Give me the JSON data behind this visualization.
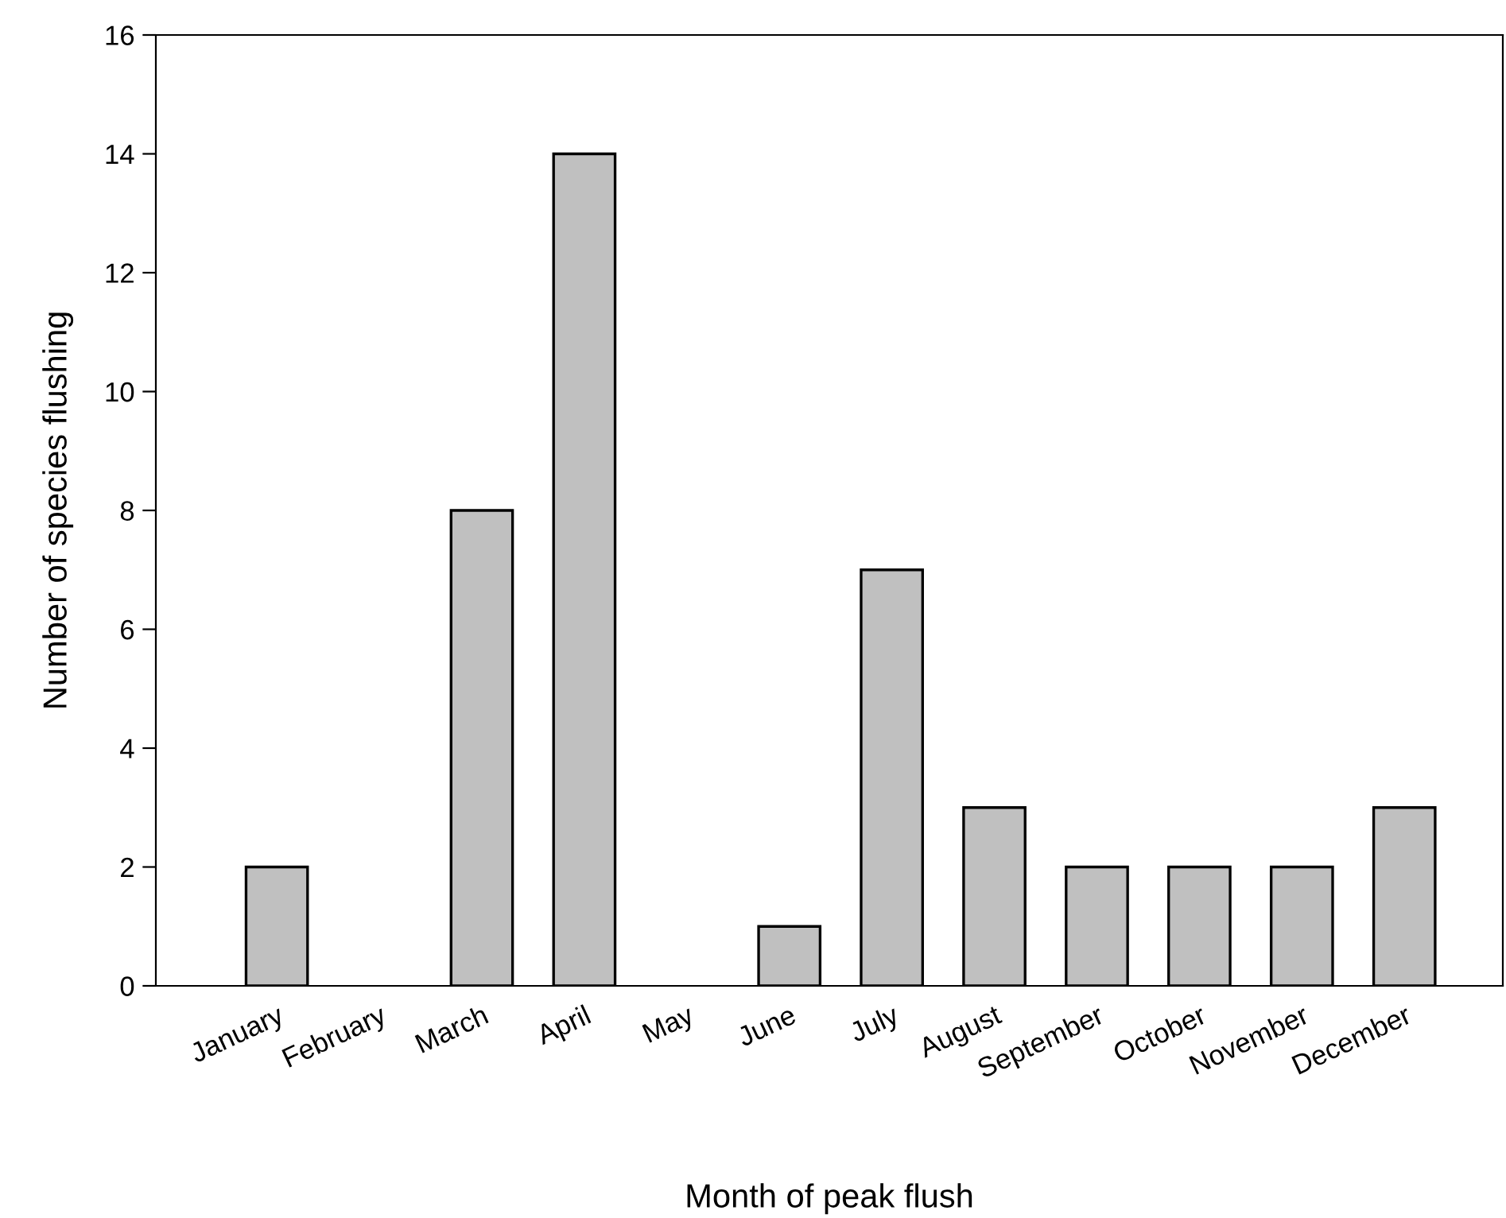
{
  "chart_data": {
    "type": "bar",
    "xlabel": "Month of peak flush",
    "ylabel": "Number of species flushing",
    "categories": [
      "January",
      "February",
      "March",
      "April",
      "May",
      "June",
      "July",
      "August",
      "September",
      "October",
      "November",
      "December"
    ],
    "values": [
      2,
      0,
      8,
      14,
      0,
      1,
      7,
      3,
      2,
      2,
      2,
      3
    ],
    "color": "#c0c0c0",
    "ylim": [
      0,
      16
    ],
    "yticks": [
      0,
      2,
      4,
      6,
      8,
      10,
      12,
      14,
      16
    ],
    "grid": false,
    "legend": false
  }
}
